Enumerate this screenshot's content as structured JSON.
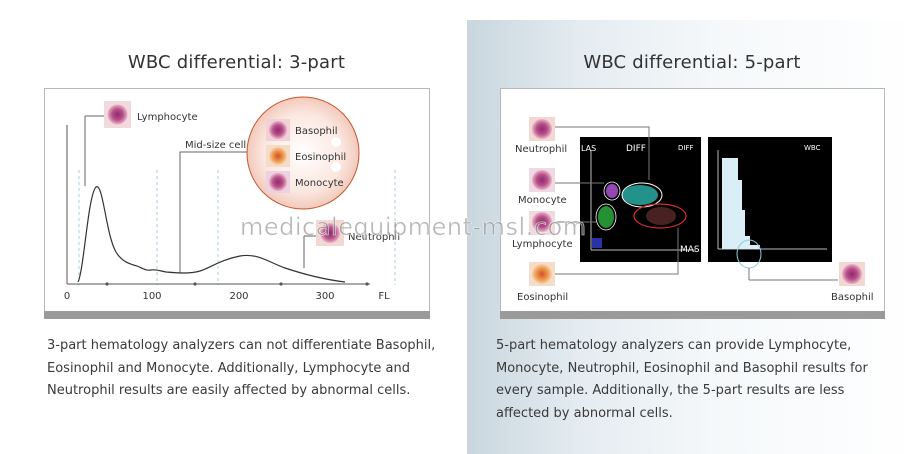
{
  "left": {
    "title": "WBC differential: 3-part",
    "labels": {
      "lymphocyte": "Lymphocyte",
      "mid_size_cell": "Mid-size cell",
      "basophil": "Basophil",
      "eosinophil": "Eosinophil",
      "monocyte": "Monocyte",
      "neutrophil": "Neutrophil"
    },
    "axis_ticks": [
      "0",
      "100",
      "200",
      "300"
    ],
    "axis_unit": "FL",
    "description": "3-part hematology analyzers can not differentiate Basophil, Eosinophil and Monocyte.  Additionally, Lymphocyte and Neutrophil results are easily affected by abnormal cells."
  },
  "right": {
    "title": "WBC differential: 5-part",
    "labels": {
      "neutrophil": "Neutrophil",
      "monocyte": "Monocyte",
      "lymphocyte": "Lymphocyte",
      "eosinophil": "Eosinophil",
      "basophil": "Basophil"
    },
    "scatter": {
      "title": "DIFF",
      "y_axis": "LAS",
      "x_axis": "MAS",
      "corner_label": "DIFF"
    },
    "histogram": {
      "corner_label": "WBC"
    },
    "description": "5-part hematology analyzers can provide Lymphocyte, Monocyte, Neutrophil, Eosinophil and Basophil results for every sample. Additionally, the 5-part results are less affected by abnormal cells."
  },
  "watermark": "medicalequipment-msl.com",
  "colors": {
    "cell_pink": "#b8508a",
    "cell_bg": "#f3d7d2",
    "mid_circle_fill": "#f7ddd5",
    "mid_circle_stroke": "#c4572c",
    "scatter_bg": "#000000",
    "highlight_red": "#d62a2a",
    "hist_blue": "#d9eef7"
  }
}
